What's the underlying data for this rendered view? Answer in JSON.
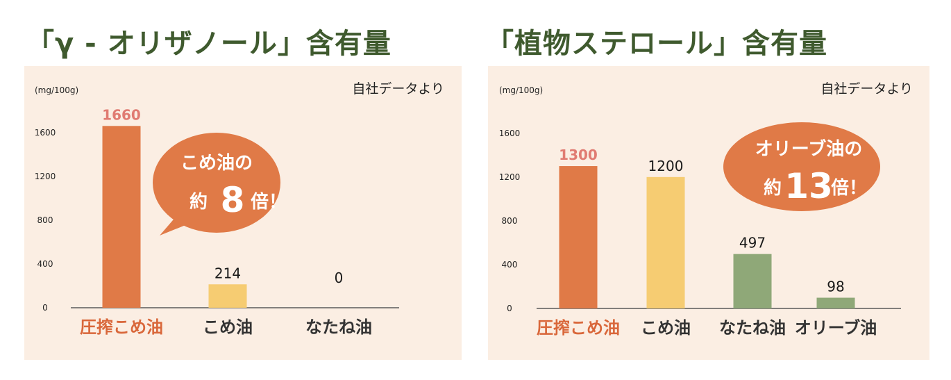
{
  "colors": {
    "heading": "#3f5a2e",
    "panel_bg": "#fbeee3",
    "bubble": "#e07a47",
    "highlight_label": "#d9673a",
    "highlight_value": "#e07b72"
  },
  "chart_data": [
    {
      "type": "bar",
      "title": "「γ - オリザノール」含有量",
      "unit_label": "(mg/100g)",
      "source": "自社データより",
      "categories": [
        "圧搾こめ油",
        "こめ油",
        "なたね油"
      ],
      "values": [
        1660,
        214,
        0
      ],
      "value_labels": [
        "1660",
        "214",
        "0"
      ],
      "bar_colors": [
        "#e07a47",
        "#f6cc72",
        "#93a979"
      ],
      "highlight_index": 0,
      "yticks": [
        "0",
        "400",
        "800",
        "1200",
        "1600"
      ],
      "ylim": [
        0,
        1700
      ],
      "callout": {
        "line1": "こめ油の",
        "prefix": "約",
        "number": "8",
        "suffix": "倍！"
      }
    },
    {
      "type": "bar",
      "title": "「植物ステロール」含有量",
      "unit_label": "(mg/100g)",
      "source": "自社データより",
      "categories": [
        "圧搾こめ油",
        "こめ油",
        "なたね油",
        "オリーブ油"
      ],
      "values": [
        1300,
        1200,
        497,
        98
      ],
      "value_labels": [
        "1300",
        "1200",
        "497",
        "98"
      ],
      "bar_colors": [
        "#e07a47",
        "#f6cc72",
        "#8fa878",
        "#8fa878"
      ],
      "highlight_index": 0,
      "yticks": [
        "0",
        "400",
        "800",
        "1200",
        "1600"
      ],
      "ylim": [
        0,
        1700
      ],
      "callout": {
        "line1": "オリーブ油の",
        "prefix": "約",
        "number": "13",
        "suffix": "倍！"
      }
    }
  ]
}
